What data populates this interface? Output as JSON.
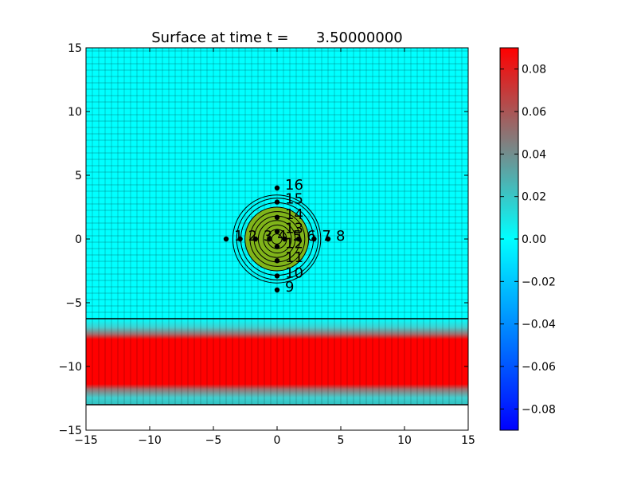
{
  "figure": {
    "title": "Surface at time t =      3.50000000"
  },
  "chart_data": {
    "type": "heatmap",
    "title": "Surface at time t =      3.50000000",
    "xlabel": "",
    "ylabel": "",
    "xlim": [
      -15,
      15
    ],
    "ylim": [
      -15,
      15
    ],
    "x_ticks": [
      -15,
      -10,
      -5,
      0,
      5,
      10,
      15
    ],
    "y_ticks": [
      -15,
      -10,
      -5,
      0,
      5,
      10,
      15
    ],
    "grid": true,
    "grid_spacing": 0.5,
    "grid_extent_y": [
      -6.25,
      15
    ],
    "background_value": 0.0,
    "band": {
      "y_range": [
        -13,
        -6.25
      ],
      "core_y_range": [
        -12.5,
        -7.5
      ],
      "value": 0.09
    },
    "bump": {
      "center": [
        0,
        0
      ],
      "fill_radius": 2.5,
      "contour_radii": [
        0.4,
        0.75,
        1.1,
        1.45,
        1.8,
        2.15,
        2.5,
        2.85,
        3.2,
        3.45
      ],
      "fill_color": "#80b41a",
      "contour_color": "#000000"
    },
    "gauges": [
      {
        "id": "1",
        "x": -4,
        "y": 0
      },
      {
        "id": "2",
        "x": -2.9,
        "y": 0
      },
      {
        "id": "3",
        "x": -1.7,
        "y": 0
      },
      {
        "id": "4",
        "x": -0.6,
        "y": 0
      },
      {
        "id": "5",
        "x": 0.6,
        "y": 0
      },
      {
        "id": "6",
        "x": 1.7,
        "y": 0
      },
      {
        "id": "7",
        "x": 2.9,
        "y": 0
      },
      {
        "id": "8",
        "x": 4,
        "y": 0
      },
      {
        "id": "9",
        "x": 0,
        "y": -4
      },
      {
        "id": "10",
        "x": 0,
        "y": -2.9
      },
      {
        "id": "11",
        "x": 0,
        "y": -1.7
      },
      {
        "id": "12",
        "x": 0,
        "y": -0.6
      },
      {
        "id": "13",
        "x": 0,
        "y": 0.6
      },
      {
        "id": "14",
        "x": 0,
        "y": 1.7
      },
      {
        "id": "15",
        "x": 0,
        "y": 2.9
      },
      {
        "id": "16",
        "x": 0,
        "y": 4
      }
    ],
    "colorbar": {
      "min": -0.09,
      "max": 0.09,
      "ticks": [
        -0.08,
        -0.06,
        -0.04,
        -0.02,
        0.0,
        0.02,
        0.04,
        0.06,
        0.08
      ],
      "tick_labels": [
        "−0.08",
        "−0.06",
        "−0.04",
        "−0.02",
        "0.00",
        "0.02",
        "0.04",
        "0.06",
        "0.08"
      ],
      "colors": [
        "#0000ff",
        "#00ffff",
        "#808080",
        "#ff0000"
      ]
    }
  }
}
